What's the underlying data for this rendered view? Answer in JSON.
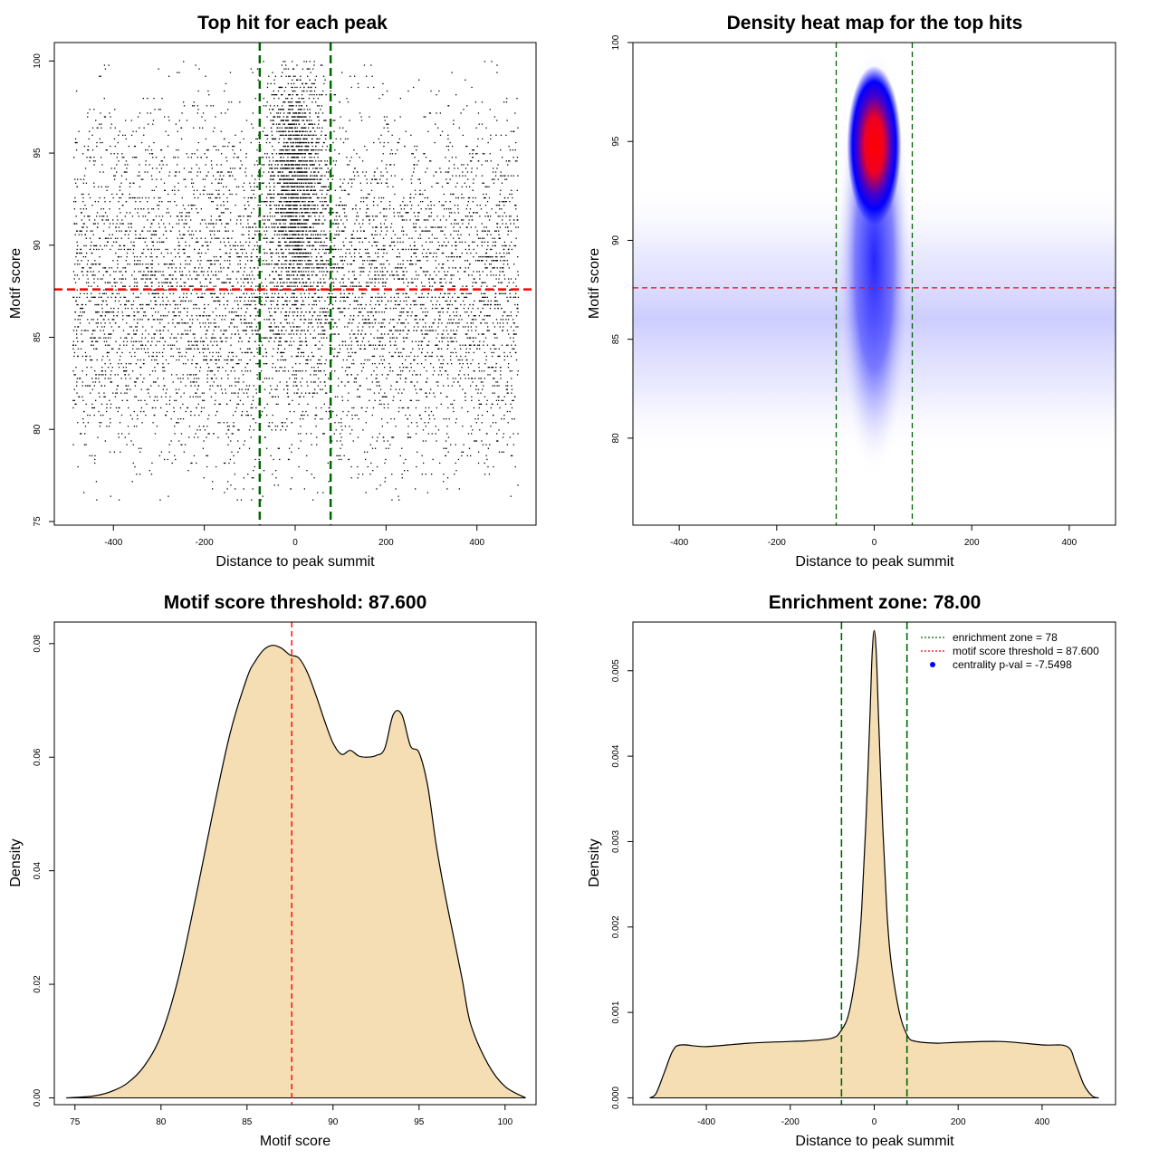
{
  "colors": {
    "reference_line": "#ff0000",
    "zone_line": "#006400",
    "fill": "#f5deb3",
    "points": "#000000",
    "heat_low": "#ffffff",
    "heat_mid": "#0000ff",
    "heat_high": "#ff0000",
    "legend_dot": "#0000ff"
  },
  "chart_data": [
    {
      "type": "scatter",
      "title": "Top hit for each peak",
      "xlabel": "Distance to peak summit",
      "ylabel": "Motif score",
      "xlim": [
        -530,
        530
      ],
      "ylim": [
        74.8,
        101
      ],
      "xticks": [
        -400,
        -200,
        0,
        200,
        400
      ],
      "yticks": [
        75,
        80,
        85,
        90,
        95,
        100
      ],
      "grid": false,
      "reference_lines": {
        "horizontal": [
          87.6
        ],
        "vertical": [
          -78,
          78
        ]
      },
      "distribution": {
        "background": {
          "x_range": [
            -490,
            490
          ],
          "score_mean": 87.5,
          "score_sd": 4.8,
          "share": 0.78
        },
        "central_cluster": {
          "x_mean": 0,
          "x_sd": 30,
          "score_mean": 93.5,
          "score_sd": 3.3,
          "share": 0.22
        }
      }
    },
    {
      "type": "heatmap",
      "title": "Density heat map for the top hits",
      "xlabel": "Distance to peak summit",
      "ylabel": "Motif score",
      "xlim": [
        -495,
        495
      ],
      "ylim": [
        75.6,
        100
      ],
      "xticks": [
        -400,
        -200,
        0,
        200,
        400
      ],
      "yticks": [
        80,
        85,
        90,
        95,
        100
      ],
      "grid": false,
      "reference_lines": {
        "horizontal": [
          87.6
        ],
        "vertical": [
          -78,
          78
        ]
      },
      "density_peak": {
        "x": 0,
        "y": 94.8
      },
      "color_scale": [
        "white",
        "blue",
        "red"
      ]
    },
    {
      "type": "area",
      "title": "Motif score threshold: 87.600",
      "xlabel": "Motif score",
      "ylabel": "Density",
      "xlim": [
        73.8,
        101.8
      ],
      "ylim": [
        -0.0012,
        0.0838
      ],
      "xticks": [
        75,
        80,
        85,
        90,
        95,
        100
      ],
      "yticks": [
        0.0,
        0.02,
        0.04,
        0.06,
        0.08
      ],
      "ytick_labels": [
        "0.00",
        "0.02",
        "0.04",
        "0.06",
        "0.08"
      ],
      "grid": false,
      "reference_lines": {
        "vertical": [
          87.6
        ]
      },
      "x": [
        74.5,
        76,
        77,
        78,
        79,
        80,
        81,
        82,
        83,
        84,
        85,
        85.5,
        86,
        86.5,
        87,
        87.5,
        88,
        88.5,
        89,
        89.5,
        90,
        90.5,
        91,
        91.5,
        92,
        92.5,
        93,
        93.5,
        94,
        94.5,
        95,
        95.5,
        96,
        96.5,
        97,
        97.5,
        98,
        99,
        100,
        101.2
      ],
      "y": [
        0.0,
        0.0003,
        0.001,
        0.0025,
        0.0055,
        0.011,
        0.021,
        0.035,
        0.05,
        0.064,
        0.074,
        0.077,
        0.079,
        0.0797,
        0.0792,
        0.078,
        0.0775,
        0.075,
        0.071,
        0.0665,
        0.0625,
        0.0605,
        0.0612,
        0.0602,
        0.06,
        0.0603,
        0.0615,
        0.0675,
        0.0675,
        0.062,
        0.0608,
        0.055,
        0.0445,
        0.036,
        0.0285,
        0.021,
        0.013,
        0.006,
        0.002,
        0.0
      ]
    },
    {
      "type": "area",
      "title": "Enrichment zone: 78.00",
      "xlabel": "Distance to peak summit",
      "ylabel": "Density",
      "xlim": [
        -575,
        575
      ],
      "ylim": [
        -8e-05,
        0.00557
      ],
      "xticks": [
        -400,
        -200,
        0,
        200,
        400
      ],
      "yticks": [
        0.0,
        0.001,
        0.002,
        0.003,
        0.004,
        0.005
      ],
      "ytick_labels": [
        "0.000",
        "0.001",
        "0.002",
        "0.003",
        "0.004",
        "0.005"
      ],
      "grid": false,
      "reference_lines": {
        "vertical": [
          -78,
          78
        ]
      },
      "x": [
        -535,
        -520,
        -500,
        -480,
        -460,
        -400,
        -300,
        -200,
        -150,
        -100,
        -80,
        -60,
        -40,
        -30,
        -20,
        -10,
        -5,
        0,
        5,
        10,
        20,
        30,
        40,
        60,
        80,
        100,
        150,
        200,
        300,
        400,
        460,
        480,
        500,
        520,
        535
      ],
      "y": [
        0.0,
        5e-05,
        0.0003,
        0.00055,
        0.00062,
        0.0006,
        0.00064,
        0.00066,
        0.00067,
        0.0007,
        0.00078,
        0.001,
        0.0016,
        0.0022,
        0.0032,
        0.0045,
        0.0052,
        0.00547,
        0.0052,
        0.0045,
        0.0032,
        0.0022,
        0.0016,
        0.001,
        0.00072,
        0.00066,
        0.00064,
        0.00065,
        0.00066,
        0.00062,
        0.0006,
        0.0004,
        0.00015,
        2e-05,
        0.0
      ],
      "legend": {
        "position": "top-right",
        "entries": [
          {
            "label": "enrichment zone = 78",
            "style": "dotted-line",
            "color": "#006400"
          },
          {
            "label": "motif score threshold = 87.600",
            "style": "dotted-line",
            "color": "#ff0000"
          },
          {
            "label": "centrality p-val = -7.5498",
            "style": "dot",
            "color": "#0000ff"
          }
        ]
      }
    }
  ]
}
